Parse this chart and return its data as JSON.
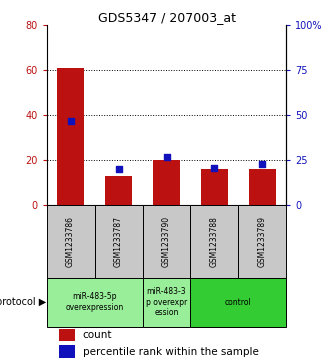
{
  "title": "GDS5347 / 207003_at",
  "samples": [
    "GSM1233786",
    "GSM1233787",
    "GSM1233790",
    "GSM1233788",
    "GSM1233789"
  ],
  "counts": [
    61,
    13,
    20,
    16,
    16
  ],
  "percentiles": [
    47,
    20,
    27,
    21,
    23
  ],
  "ylim_left": [
    0,
    80
  ],
  "ylim_right": [
    0,
    100
  ],
  "yticks_left": [
    0,
    20,
    40,
    60,
    80
  ],
  "yticks_right": [
    0,
    25,
    50,
    75,
    100
  ],
  "yticklabels_right": [
    "0",
    "25",
    "50",
    "75",
    "100%"
  ],
  "bar_color": "#bb1111",
  "dot_color": "#1111bb",
  "bg_color": "#ffffff",
  "sample_box_color": "#c8c8c8",
  "bar_width": 0.55,
  "dot_size": 25,
  "group_spans": [
    {
      "start": 0,
      "end": 1,
      "label": "miR-483-5p\noverexpression",
      "color": "#99ee99"
    },
    {
      "start": 2,
      "end": 2,
      "label": "miR-483-3\np overexpr\nession",
      "color": "#99ee99"
    },
    {
      "start": 3,
      "end": 4,
      "label": "control",
      "color": "#33cc33"
    }
  ],
  "legend_count_label": "count",
  "legend_pct_label": "percentile rank within the sample"
}
